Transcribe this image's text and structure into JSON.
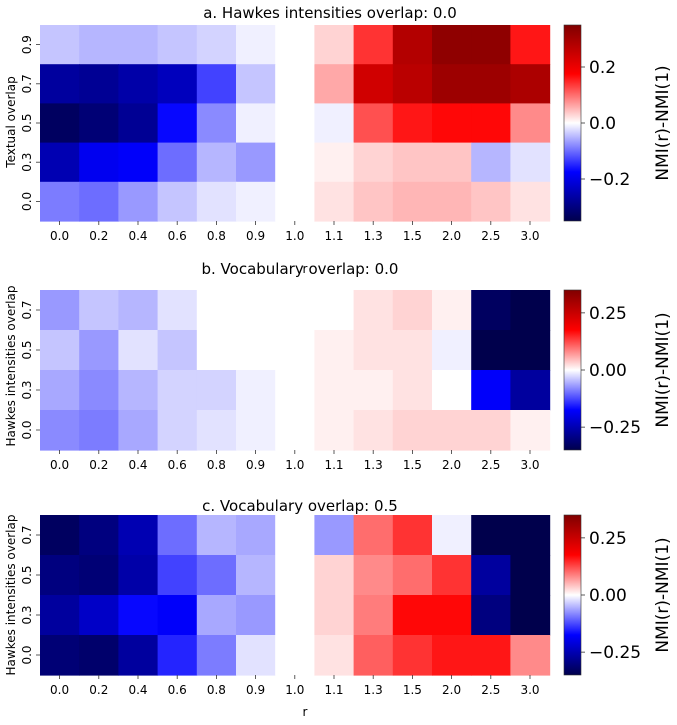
{
  "colors": {
    "negative_extreme": "#00004c",
    "mid": "#ffffff",
    "positive_extreme": "#800000"
  },
  "chart_data": [
    {
      "type": "heatmap",
      "title": "a. Hawkes intensities overlap: 0.0",
      "xlabel": "r",
      "ylabel": "Textual overlap",
      "colorbar_label": "NMI(r)-NMI(1)",
      "colorbar_ticks": [
        {
          "value": 0.2,
          "label": "0.2"
        },
        {
          "value": 0.0,
          "label": "0.0"
        },
        {
          "value": -0.2,
          "label": "−0.2"
        }
      ],
      "vlim": [
        -0.35,
        0.35
      ],
      "x": [
        "0.0",
        "0.2",
        "0.4",
        "0.6",
        "0.8",
        "0.9",
        "1.0",
        "1.1",
        "1.3",
        "1.5",
        "2.0",
        "2.5",
        "3.0"
      ],
      "y": [
        "0.9",
        "0.7",
        "0.5",
        "0.3",
        "0.0"
      ],
      "values": [
        [
          -0.04,
          -0.05,
          -0.05,
          -0.04,
          -0.03,
          -0.01,
          0.0,
          0.03,
          0.14,
          0.28,
          0.33,
          0.33,
          0.16
        ],
        [
          -0.27,
          -0.28,
          -0.26,
          -0.24,
          -0.13,
          -0.04,
          0.0,
          0.06,
          0.24,
          0.27,
          0.31,
          0.31,
          0.29
        ],
        [
          -0.33,
          -0.31,
          -0.28,
          -0.17,
          -0.08,
          -0.01,
          0.0,
          -0.01,
          0.12,
          0.16,
          0.17,
          0.17,
          0.08
        ],
        [
          -0.25,
          -0.19,
          -0.18,
          -0.1,
          -0.05,
          -0.07,
          0.0,
          0.01,
          0.03,
          0.04,
          0.04,
          -0.05,
          -0.02
        ],
        [
          -0.09,
          -0.1,
          -0.07,
          -0.04,
          -0.02,
          -0.01,
          0.0,
          0.02,
          0.04,
          0.05,
          0.05,
          0.04,
          0.02
        ]
      ]
    },
    {
      "type": "heatmap",
      "title": "b. Vocabulary overlap: 0.0",
      "xlabel": "",
      "ylabel": "Hawkes intensities overlap",
      "colorbar_label": "NMI(r)-NMI(1)",
      "colorbar_ticks": [
        {
          "value": 0.25,
          "label": "0.25"
        },
        {
          "value": 0.0,
          "label": "0.00"
        },
        {
          "value": -0.25,
          "label": "−0.25"
        }
      ],
      "vlim": [
        -0.35,
        0.35
      ],
      "x": [
        "0.0",
        "0.2",
        "0.4",
        "0.6",
        "0.8",
        "0.9",
        "1.0",
        "1.1",
        "1.3",
        "1.5",
        "2.0",
        "2.5",
        "3.0"
      ],
      "y": [
        "0.7",
        "0.5",
        "0.3",
        "0.0"
      ],
      "values": [
        [
          -0.07,
          -0.04,
          -0.05,
          -0.02,
          0.0,
          0.0,
          0.0,
          0.0,
          0.02,
          0.03,
          0.01,
          -0.33,
          -0.36
        ],
        [
          -0.04,
          -0.07,
          -0.02,
          -0.04,
          0.0,
          0.0,
          0.0,
          0.01,
          0.02,
          0.02,
          -0.01,
          -0.36,
          -0.36
        ],
        [
          -0.06,
          -0.08,
          -0.05,
          -0.03,
          -0.03,
          -0.01,
          0.0,
          0.01,
          0.01,
          0.02,
          0.0,
          -0.18,
          -0.27
        ],
        [
          -0.08,
          -0.09,
          -0.06,
          -0.03,
          -0.02,
          -0.01,
          0.0,
          0.01,
          0.02,
          0.03,
          0.03,
          0.03,
          0.01
        ]
      ]
    },
    {
      "type": "heatmap",
      "title": "c. Vocabulary overlap: 0.5",
      "xlabel": "r",
      "ylabel": "Hawkes intensities overlap",
      "colorbar_label": "NMI(r)-NMI(1)",
      "colorbar_ticks": [
        {
          "value": 0.25,
          "label": "0.25"
        },
        {
          "value": 0.0,
          "label": "0.00"
        },
        {
          "value": -0.25,
          "label": "−0.25"
        }
      ],
      "vlim": [
        -0.35,
        0.35
      ],
      "x": [
        "0.0",
        "0.2",
        "0.4",
        "0.6",
        "0.8",
        "0.9",
        "1.0",
        "1.1",
        "1.3",
        "1.5",
        "2.0",
        "2.5",
        "3.0"
      ],
      "y": [
        "0.7",
        "0.5",
        "0.3",
        "0.0"
      ],
      "values": [
        [
          -0.33,
          -0.3,
          -0.25,
          -0.1,
          -0.05,
          -0.06,
          0.0,
          -0.07,
          0.1,
          0.14,
          -0.01,
          -0.36,
          -0.36
        ],
        [
          -0.3,
          -0.31,
          -0.26,
          -0.13,
          -0.1,
          -0.05,
          0.0,
          0.03,
          0.08,
          0.1,
          0.14,
          -0.27,
          -0.36
        ],
        [
          -0.27,
          -0.23,
          -0.17,
          -0.18,
          -0.06,
          -0.07,
          0.0,
          0.03,
          0.09,
          0.17,
          0.17,
          -0.3,
          -0.36
        ],
        [
          -0.31,
          -0.32,
          -0.27,
          -0.15,
          -0.09,
          -0.02,
          0.0,
          0.02,
          0.11,
          0.14,
          0.16,
          0.16,
          0.08
        ]
      ]
    }
  ]
}
